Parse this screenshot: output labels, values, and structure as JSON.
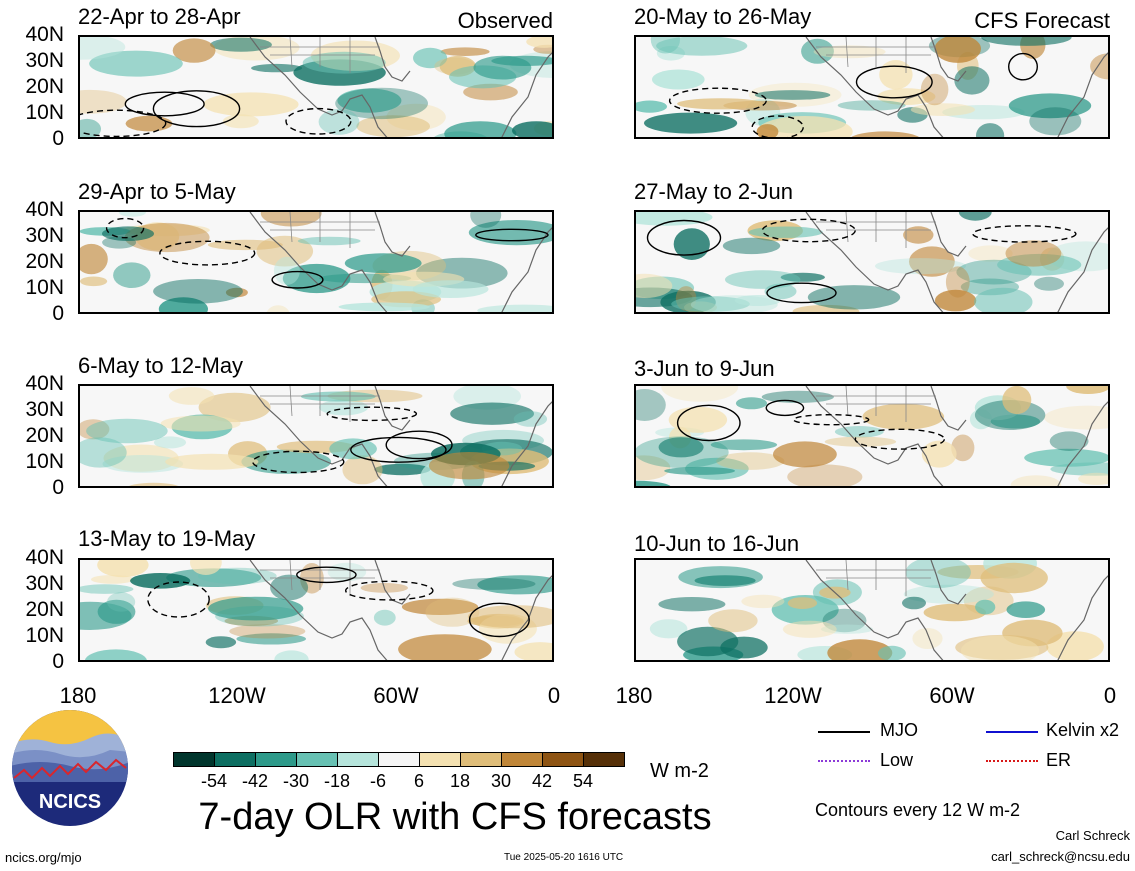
{
  "panels": [
    {
      "title": "22-Apr to 28-Apr",
      "tag": "Observed"
    },
    {
      "title": "20-May to 26-May",
      "tag": "CFS Forecast"
    },
    {
      "title": "29-Apr to 5-May",
      "tag": ""
    },
    {
      "title": "27-May to 2-Jun",
      "tag": ""
    },
    {
      "title": "6-May to 12-May",
      "tag": ""
    },
    {
      "title": "3-Jun to 9-Jun",
      "tag": ""
    },
    {
      "title": "13-May to 19-May",
      "tag": ""
    },
    {
      "title": "10-Jun to 16-Jun",
      "tag": ""
    }
  ],
  "y_ticks": [
    "40N",
    "30N",
    "20N",
    "10N",
    "0"
  ],
  "x_ticks": [
    "180",
    "120W",
    "60W",
    "0"
  ],
  "colorbar": {
    "labels": [
      "-54",
      "-42",
      "-30",
      "-18",
      "-6",
      "6",
      "18",
      "30",
      "42",
      "54"
    ],
    "colors": [
      "#01362d",
      "#0d6f62",
      "#2d9a8a",
      "#67c1b3",
      "#b6e5dc",
      "#f5f5f5",
      "#f4e1b1",
      "#dfbd79",
      "#c08638",
      "#8e5413",
      "#563008"
    ],
    "unit": "W m-2"
  },
  "key": {
    "mjo": "MJO",
    "kelvin": "Kelvin x2",
    "low": "Low",
    "er": "ER",
    "contours": "Contours every 12 W m-2"
  },
  "title": "7-day OLR with CFS forecasts",
  "logo_text": "NCICS",
  "footer": {
    "url": "ncics.org/mjo",
    "timestamp": "Tue 2025-05-20 1616 UTC",
    "author": "Carl Schreck",
    "email": "carl_schreck@ncsu.edu"
  }
}
